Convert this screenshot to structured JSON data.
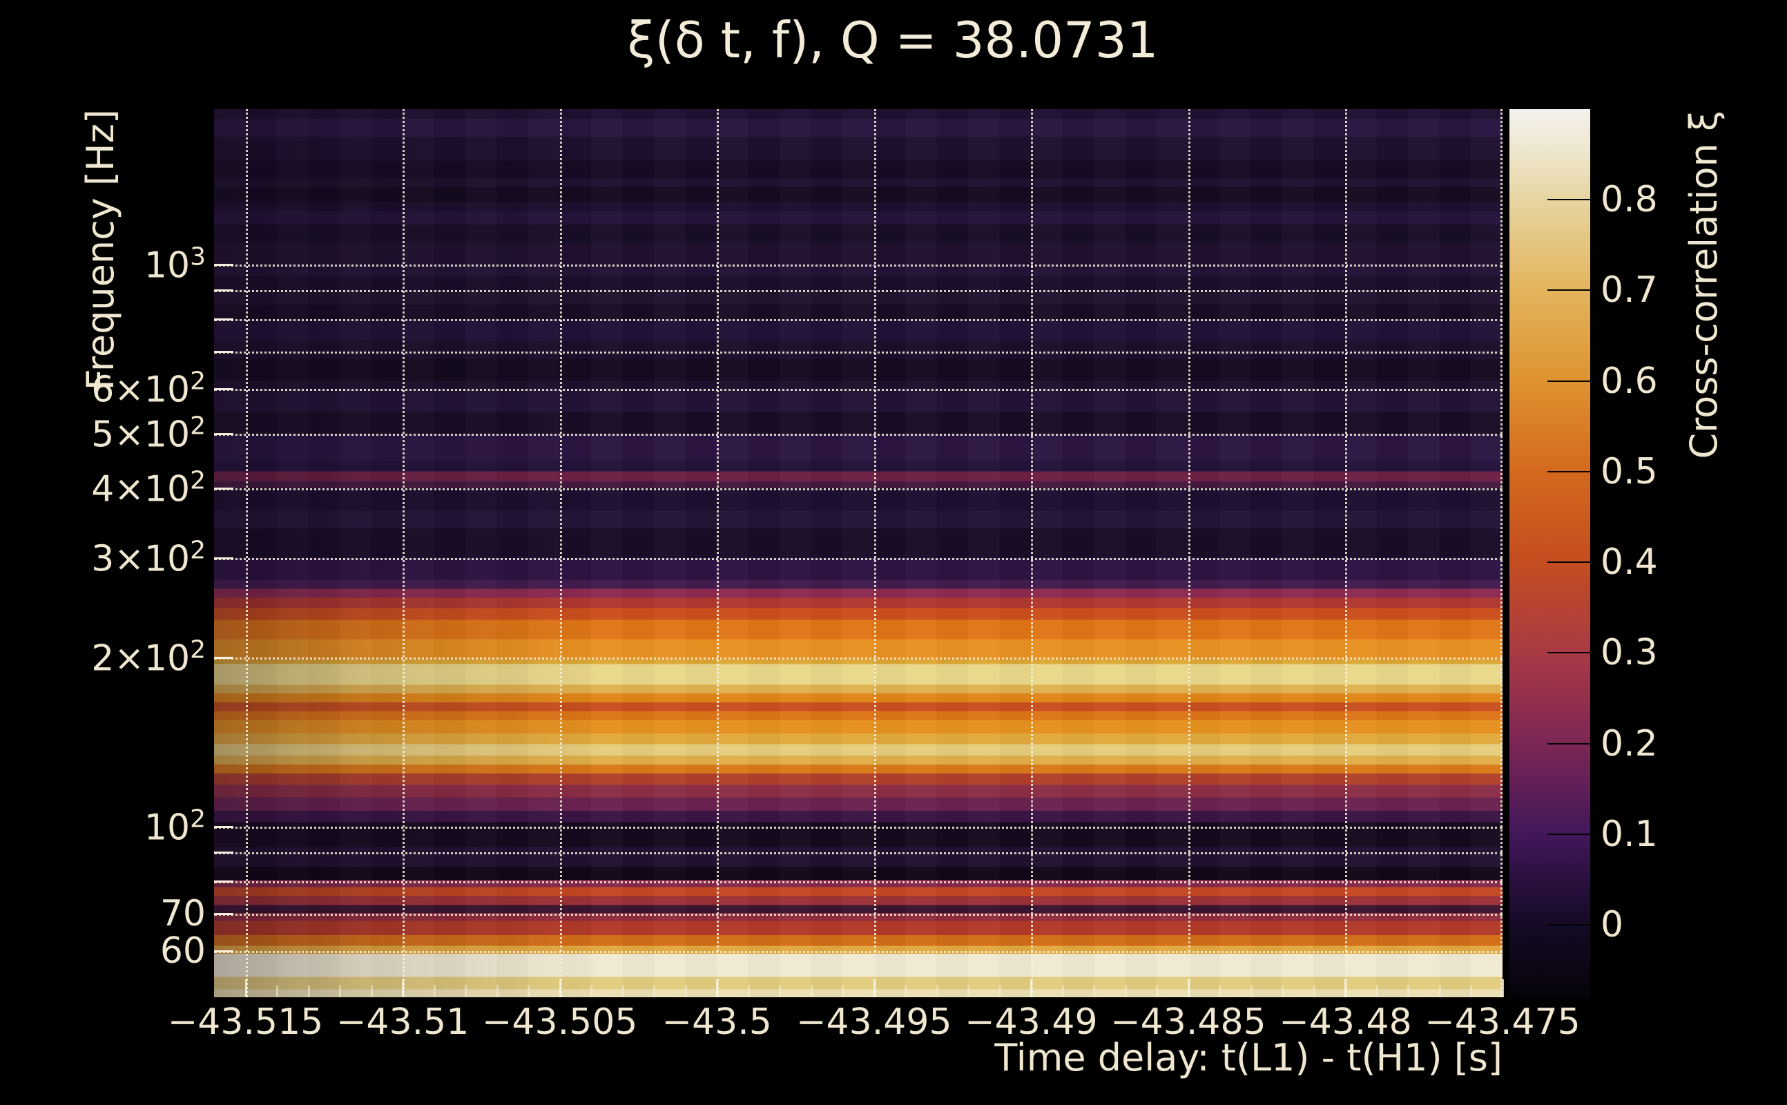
{
  "title": "ξ(δ t, f), Q = 38.0731",
  "colors": {
    "background": "#000000",
    "text": "#efe7cf",
    "grid": "#f7f0dc",
    "colorbar_tick": "#000000"
  },
  "chart_data": {
    "type": "heatmap",
    "title": "ξ(δ t, f), Q = 38.0731",
    "q_value": 38.0731,
    "xlabel": "Time delay: t(L1) - t(H1) [s]",
    "ylabel": "Frequency [Hz]",
    "x": {
      "lim": [
        -43.516,
        -43.475
      ],
      "scale": "linear",
      "major_ticks": [
        {
          "v": -43.515,
          "label": "−43.515"
        },
        {
          "v": -43.51,
          "label": "−43.51"
        },
        {
          "v": -43.505,
          "label": "−43.505"
        },
        {
          "v": -43.5,
          "label": "−43.5"
        },
        {
          "v": -43.495,
          "label": "−43.495"
        },
        {
          "v": -43.49,
          "label": "−43.49"
        },
        {
          "v": -43.485,
          "label": "−43.485"
        },
        {
          "v": -43.48,
          "label": "−43.48"
        },
        {
          "v": -43.475,
          "label": "−43.475"
        }
      ],
      "minor_step": 0.001
    },
    "y": {
      "lim": [
        49.7,
        1889
      ],
      "scale": "log",
      "ticks": [
        {
          "f": 1000,
          "main": "10",
          "sup": "3"
        },
        {
          "f": 600,
          "main": "6×10",
          "sup": "2"
        },
        {
          "f": 500,
          "main": "5×10",
          "sup": "2"
        },
        {
          "f": 400,
          "main": "4×10",
          "sup": "2"
        },
        {
          "f": 300,
          "main": "3×10",
          "sup": "2"
        },
        {
          "f": 200,
          "main": "2×10",
          "sup": "2"
        },
        {
          "f": 100,
          "main": "10",
          "sup": "2"
        },
        {
          "f": 70,
          "main": "70",
          "sup": ""
        },
        {
          "f": 60,
          "main": "60",
          "sup": ""
        }
      ],
      "gridline_freqs": [
        1000,
        900,
        800,
        700,
        600,
        500,
        400,
        300,
        200,
        100,
        90,
        80,
        70,
        60
      ]
    },
    "colorbar": {
      "label": "Cross-correlation ξ",
      "lim": [
        -0.08,
        0.9
      ],
      "ticks": [
        {
          "v": 0.8,
          "label": "0.8"
        },
        {
          "v": 0.7,
          "label": "0.7"
        },
        {
          "v": 0.6,
          "label": "0.6"
        },
        {
          "v": 0.5,
          "label": "0.5"
        },
        {
          "v": 0.4,
          "label": "0.4"
        },
        {
          "v": 0.3,
          "label": "0.3"
        },
        {
          "v": 0.2,
          "label": "0.2"
        },
        {
          "v": 0.1,
          "label": "0.1"
        },
        {
          "v": 0,
          "label": "0"
        }
      ],
      "stops": [
        {
          "v": -0.08,
          "c": "#060309"
        },
        {
          "v": 0.0,
          "c": "#150a26"
        },
        {
          "v": 0.05,
          "c": "#2a1040"
        },
        {
          "v": 0.1,
          "c": "#42175a"
        },
        {
          "v": 0.2,
          "c": "#7c2655"
        },
        {
          "v": 0.3,
          "c": "#a93a44"
        },
        {
          "v": 0.4,
          "c": "#c44d20"
        },
        {
          "v": 0.5,
          "c": "#d4691d"
        },
        {
          "v": 0.6,
          "c": "#de9330"
        },
        {
          "v": 0.7,
          "c": "#e3b45c"
        },
        {
          "v": 0.8,
          "c": "#e7d5a2"
        },
        {
          "v": 0.86,
          "c": "#efe8d2"
        },
        {
          "v": 0.9,
          "c": "#f4f2ee"
        }
      ]
    },
    "note": "Cross-correlation ξ vs time delay and frequency; nearly uniform in time, strongly banded in frequency. Band fraction t measured from plot top; f = 1889·10^(−1.5798·t). Slight dimming at the left edge.",
    "bands": [
      {
        "t": 0.0,
        "c": "#1e1030",
        "xi": 0.06
      },
      {
        "t": 0.011,
        "c": "#2a1540",
        "xi": 0.11
      },
      {
        "t": 0.031,
        "c": "#1e0f2e",
        "xi": 0.06
      },
      {
        "t": 0.058,
        "c": "#170b24",
        "xi": 0.03
      },
      {
        "t": 0.078,
        "c": "#1f102f",
        "xi": 0.06
      },
      {
        "t": 0.088,
        "c": "#150a20",
        "xi": 0.02
      },
      {
        "t": 0.105,
        "c": "#1d0e2e",
        "xi": 0.05
      },
      {
        "t": 0.115,
        "c": "#261239",
        "xi": 0.09
      },
      {
        "t": 0.13,
        "c": "#190d28",
        "xi": 0.04
      },
      {
        "t": 0.15,
        "c": "#21102f",
        "xi": 0.07
      },
      {
        "t": 0.175,
        "c": "#241236",
        "xi": 0.08
      },
      {
        "t": 0.188,
        "c": "#1b0d2a",
        "xi": 0.05
      },
      {
        "t": 0.205,
        "c": "#22122f",
        "xi": 0.07
      },
      {
        "t": 0.22,
        "c": "#190c26",
        "xi": 0.04
      },
      {
        "t": 0.238,
        "c": "#231138",
        "xi": 0.08
      },
      {
        "t": 0.261,
        "c": "#1d0e2b",
        "xi": 0.05
      },
      {
        "t": 0.281,
        "c": "#150a20",
        "xi": 0.02
      },
      {
        "t": 0.306,
        "c": "#1f102e",
        "xi": 0.06
      },
      {
        "t": 0.316,
        "c": "#241237",
        "xi": 0.08
      },
      {
        "t": 0.341,
        "c": "#190d26",
        "xi": 0.04
      },
      {
        "t": 0.366,
        "c": "#2c1542",
        "xi": 0.12
      },
      {
        "t": 0.396,
        "c": "#23113a",
        "xi": 0.08
      },
      {
        "t": 0.408,
        "c": "#6d2145",
        "xi": 0.25
      },
      {
        "t": 0.419,
        "c": "#44193f",
        "xi": 0.17
      },
      {
        "t": 0.427,
        "c": "#1c0e2f",
        "xi": 0.05
      },
      {
        "t": 0.452,
        "c": "#241437",
        "xi": 0.08
      },
      {
        "t": 0.472,
        "c": "#1a0c28",
        "xi": 0.04
      },
      {
        "t": 0.505,
        "c": "#2e1344",
        "xi": 0.12
      },
      {
        "t": 0.53,
        "c": "#421c4e",
        "xi": 0.17
      },
      {
        "t": 0.54,
        "c": "#8c2a50",
        "xi": 0.29
      },
      {
        "t": 0.55,
        "c": "#b03830",
        "xi": 0.37
      },
      {
        "t": 0.562,
        "c": "#cc4f1d",
        "xi": 0.45
      },
      {
        "t": 0.575,
        "c": "#e07617",
        "xi": 0.55
      },
      {
        "t": 0.597,
        "c": "#e89121",
        "xi": 0.61
      },
      {
        "t": 0.62,
        "c": "#dca835",
        "xi": 0.66
      },
      {
        "t": 0.625,
        "c": "#ead789",
        "xi": 0.8
      },
      {
        "t": 0.648,
        "c": "#dfb150",
        "xi": 0.69
      },
      {
        "t": 0.658,
        "c": "#e08618",
        "xi": 0.58
      },
      {
        "t": 0.668,
        "c": "#c9501f",
        "xi": 0.45
      },
      {
        "t": 0.678,
        "c": "#dd7517",
        "xi": 0.54
      },
      {
        "t": 0.688,
        "c": "#e5911f",
        "xi": 0.6
      },
      {
        "t": 0.703,
        "c": "#e2a93c",
        "xi": 0.67
      },
      {
        "t": 0.715,
        "c": "#e6cd7d",
        "xi": 0.77
      },
      {
        "t": 0.728,
        "c": "#dfaf4a",
        "xi": 0.68
      },
      {
        "t": 0.738,
        "c": "#d97918",
        "xi": 0.55
      },
      {
        "t": 0.748,
        "c": "#b0402c",
        "xi": 0.38
      },
      {
        "t": 0.761,
        "c": "#8c2d46",
        "xi": 0.29
      },
      {
        "t": 0.775,
        "c": "#6b2350",
        "xi": 0.24
      },
      {
        "t": 0.79,
        "c": "#3a1445",
        "xi": 0.14
      },
      {
        "t": 0.803,
        "c": "#17091f",
        "xi": 0.01
      },
      {
        "t": 0.831,
        "c": "#221030",
        "xi": 0.07
      },
      {
        "t": 0.853,
        "c": "#120718",
        "xi": 0.0
      },
      {
        "t": 0.868,
        "c": "#86284a",
        "xi": 0.28
      },
      {
        "t": 0.876,
        "c": "#c44822",
        "xi": 0.43
      },
      {
        "t": 0.886,
        "c": "#9c3138",
        "xi": 0.32
      },
      {
        "t": 0.896,
        "c": "#3a1430",
        "xi": 0.13
      },
      {
        "t": 0.905,
        "c": "#8e2c3c",
        "xi": 0.29
      },
      {
        "t": 0.914,
        "c": "#b23a28",
        "xi": 0.37
      },
      {
        "t": 0.93,
        "c": "#d26d18",
        "xi": 0.52
      },
      {
        "t": 0.942,
        "c": "#e2a840",
        "xi": 0.66
      },
      {
        "t": 0.951,
        "c": "#f0ead2",
        "xi": 0.86
      },
      {
        "t": 0.977,
        "c": "#e2cc7e",
        "xi": 0.76
      },
      {
        "t": 0.991,
        "c": "#ece0b4",
        "xi": 0.82
      }
    ]
  }
}
